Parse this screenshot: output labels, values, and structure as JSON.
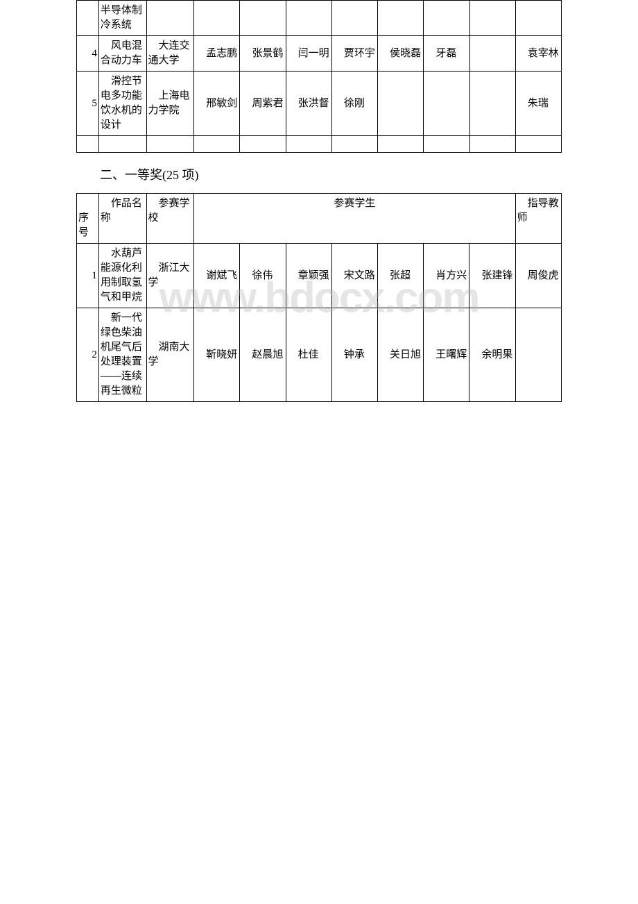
{
  "watermark": "www.bdocx.com",
  "table1": {
    "rows": [
      {
        "seq": "",
        "work": "半导体制冷系统",
        "school": "",
        "s1": "",
        "s2": "",
        "s3": "",
        "s4": "",
        "s5": "",
        "s6": "",
        "s7": "",
        "teacher": ""
      },
      {
        "seq": "4",
        "work": "　风电混合动力车",
        "school": "　大连交通大学",
        "s1": "　孟志鹏",
        "s2": "　张景鹤",
        "s3": "　闫一明",
        "s4": "　贾环宇",
        "s5": "　侯晓磊",
        "s6": "　牙磊",
        "s7": "",
        "teacher": "　袁宰林"
      },
      {
        "seq": "5",
        "work": "　滑控节电多功能饮水机的设计",
        "school": "　上海电力学院",
        "s1": "　邢敏剑",
        "s2": "　周紫君",
        "s3": "　张洪督",
        "s4": "　徐刚",
        "s5": "",
        "s6": "",
        "s7": "",
        "teacher": "　朱瑞"
      },
      {
        "seq": "",
        "work": "",
        "school": "",
        "s1": "",
        "s2": "",
        "s3": "",
        "s4": "",
        "s5": "",
        "s6": "",
        "s7": "",
        "teacher": ""
      }
    ]
  },
  "section2": {
    "heading": "二、一等奖(25 项)"
  },
  "table2": {
    "headers": {
      "seq": "　序号",
      "work": "　作品名称",
      "school": "　参赛学校",
      "students": "参赛学生",
      "teacher": "　指导教师"
    },
    "rows": [
      {
        "seq": "1",
        "work": "　水葫芦能源化利用制取氢气和甲烷",
        "school": "　浙江大学",
        "s1": "　谢斌飞",
        "s2": "　徐伟",
        "s3": "　章颖强",
        "s4": "　宋文路",
        "s5": "　张超",
        "s6": "　肖方兴",
        "s7": "　张建锋",
        "teacher": "　周俊虎"
      },
      {
        "seq": "2",
        "work": "　新一代绿色柴油机尾气后处理装置——连续再生微粒",
        "school": "　湖南大学",
        "s1": "　靳晓妍",
        "s2": "　赵晨旭",
        "s3": "　杜佳",
        "s4": "　钟承",
        "s5": "　关日旭",
        "s6": "　王曙辉",
        "s7": "　余明果",
        "teacher": ""
      }
    ]
  }
}
